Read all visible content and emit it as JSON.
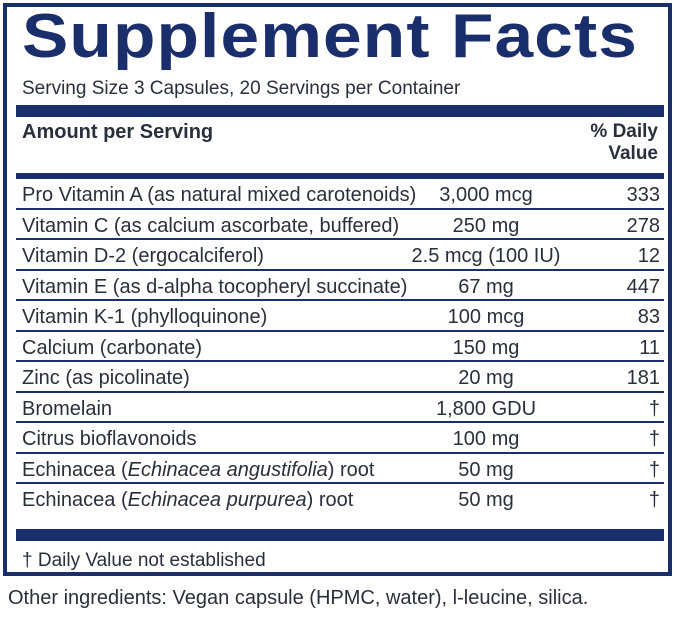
{
  "title": "Supplement Facts",
  "serving_line": "Serving Size 3 Capsules, 20 Servings per Container",
  "header": {
    "amount_label": "Amount per Serving",
    "dv_label_line1": "% Daily",
    "dv_label_line2": "Value"
  },
  "rows": [
    {
      "name": "Pro Vitamin A (as natural mixed carotenoids)",
      "amount": "3,000 mcg",
      "dv": "333"
    },
    {
      "name": "Vitamin C (as calcium ascorbate, buffered)",
      "amount": "250 mg",
      "dv": "278"
    },
    {
      "name": "Vitamin D-2 (ergocalciferol)",
      "amount": "2.5 mcg (100 IU)",
      "dv": "12"
    },
    {
      "name": "Vitamin E (as d-alpha tocopheryl succinate)",
      "amount": "67 mg",
      "dv": "447"
    },
    {
      "name": "Vitamin K-1 (phylloquinone)",
      "amount": "100 mcg",
      "dv": "83"
    },
    {
      "name": "Calcium (carbonate)",
      "amount": "150 mg",
      "dv": "11"
    },
    {
      "name": "Zinc (as picolinate)",
      "amount": "20 mg",
      "dv": "181"
    },
    {
      "name": "Bromelain",
      "amount": "1,800 GDU",
      "dv": "†"
    },
    {
      "name": "Citrus bioflavonoids",
      "amount": "100 mg",
      "dv": "†"
    },
    {
      "name_pre": "Echinacea (",
      "name_italic": "Echinacea angustifolia",
      "name_post": ") root",
      "amount": "50 mg",
      "dv": "†"
    },
    {
      "name_pre": "Echinacea (",
      "name_italic": "Echinacea purpurea",
      "name_post": ") root",
      "amount": "50 mg",
      "dv": "†"
    }
  ],
  "footnote": "† Daily Value not established",
  "other_ingredients": "Other ingredients: Vegan capsule (HPMC, water), l-leucine, silica."
}
